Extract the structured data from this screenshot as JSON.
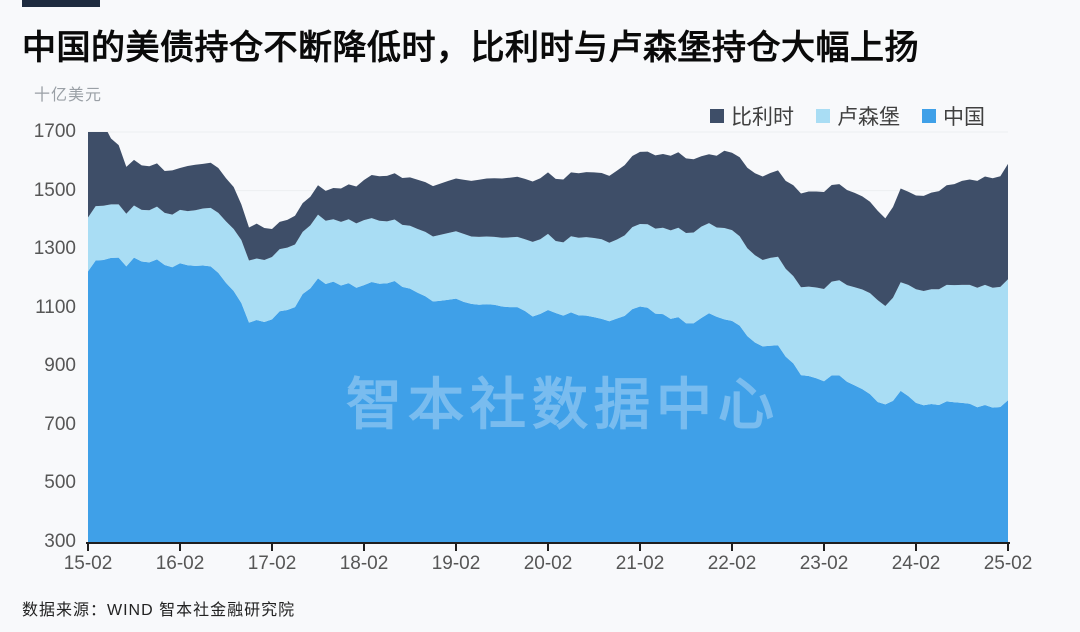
{
  "page": {
    "title": "中国的美债持仓不断降低时，比利时与卢森堡持仓大幅上扬",
    "unit_label": "十亿美元",
    "watermark": "智本社数据中心",
    "source": "数据来源：WIND 智本社金融研究院"
  },
  "colors": {
    "belgium": "#3E4E68",
    "luxembourg": "#A9DDF4",
    "china": "#3FA0E8",
    "background": "#F8F9FB",
    "grid": "#ECEEF1",
    "axis": "#1F1F1F",
    "accent_bar": "#1E2B3F"
  },
  "chart_data": {
    "type": "area",
    "stacked": true,
    "title": "中国的美债持仓不断降低时，比利时与卢森堡持仓大幅上扬",
    "ylabel": "十亿美元",
    "ylim": [
      300,
      1700
    ],
    "y_ticks": [
      1700,
      1500,
      1300,
      1100,
      900,
      700,
      500,
      300
    ],
    "x_tick_labels": [
      "15-02",
      "16-02",
      "17-02",
      "18-02",
      "19-02",
      "20-02",
      "21-02",
      "22-02",
      "23-02",
      "24-02",
      "25-02"
    ],
    "x_start": "2015-02",
    "x_end": "2025-02",
    "x_interval": "monthly",
    "grid": true,
    "legend_position": "top-right",
    "stack_order_bottom_to_top": [
      "中国",
      "卢森堡",
      "比利时"
    ],
    "series": [
      {
        "name": "比利时",
        "key": "belgium",
        "color": "#3E4E68",
        "values": [
          345,
          352,
          280,
          225,
          202,
          160,
          156,
          152,
          150,
          148,
          143,
          151,
          143,
          154,
          155,
          152,
          154,
          153,
          147,
          143,
          122,
          113,
          119,
          109,
          96,
          93,
          95,
          98,
          98,
          98,
          100,
          102,
          107,
          114,
          119,
          126,
          137,
          147,
          152,
          155,
          158,
          160,
          165,
          168,
          170,
          172,
          175,
          178,
          180,
          185,
          190,
          195,
          198,
          200,
          202,
          204,
          205,
          206,
          206,
          208,
          210,
          212,
          215,
          218,
          220,
          222,
          224,
          226,
          228,
          235,
          240,
          243,
          246,
          248,
          250,
          252,
          255,
          258,
          255,
          250,
          240,
          235,
          245,
          264,
          264,
          270,
          275,
          280,
          285,
          290,
          295,
          300,
          310,
          320,
          325,
          328,
          331,
          330,
          328,
          325,
          322,
          318,
          312,
          305,
          299,
          310,
          320,
          318,
          320,
          325,
          330,
          335,
          340,
          345,
          355,
          360,
          365,
          370,
          374,
          378,
          394
        ]
      },
      {
        "name": "卢森堡",
        "key": "luxembourg",
        "color": "#A9DDF4",
        "values": [
          184,
          186,
          185,
          183,
          182,
          180,
          178,
          176,
          178,
          180,
          178,
          180,
          182,
          185,
          190,
          195,
          200,
          205,
          210,
          212,
          215,
          212,
          210,
          212,
          213,
          212,
          213,
          214,
          212,
          215,
          218,
          216,
          213,
          217,
          218,
          220,
          222,
          218,
          215,
          212,
          210,
          212,
          215,
          218,
          220,
          222,
          225,
          228,
          230,
          232,
          230,
          232,
          231,
          232,
          235,
          238,
          240,
          245,
          255,
          255,
          260,
          246,
          250,
          260,
          265,
          268,
          270,
          272,
          268,
          270,
          275,
          280,
          282,
          285,
          290,
          295,
          302,
          305,
          308,
          310,
          312,
          308,
          305,
          312,
          310,
          305,
          300,
          298,
          295,
          300,
          302,
          300,
          298,
          300,
          305,
          310,
          315,
          320,
          325,
          330,
          335,
          340,
          345,
          348,
          336,
          352,
          371,
          380,
          388,
          390,
          392,
          395,
          398,
          400,
          403,
          406,
          408,
          410,
          409,
          410,
          413
        ]
      },
      {
        "name": "中国",
        "key": "china",
        "color": "#3FA0E8",
        "values": [
          1224,
          1261,
          1263,
          1270,
          1271,
          1241,
          1271,
          1258,
          1255,
          1265,
          1246,
          1238,
          1252,
          1245,
          1243,
          1244,
          1241,
          1219,
          1185,
          1157,
          1116,
          1049,
          1058,
          1051,
          1060,
          1088,
          1092,
          1102,
          1147,
          1166,
          1200,
          1181,
          1189,
          1176,
          1184,
          1168,
          1177,
          1188,
          1182,
          1183,
          1191,
          1171,
          1165,
          1151,
          1139,
          1121,
          1124,
          1127,
          1131,
          1120,
          1113,
          1110,
          1112,
          1110,
          1104,
          1102,
          1102,
          1089,
          1070,
          1079,
          1092,
          1082,
          1073,
          1084,
          1074,
          1073,
          1068,
          1062,
          1054,
          1063,
          1072,
          1095,
          1104,
          1100,
          1080,
          1078,
          1062,
          1068,
          1047,
          1047,
          1065,
          1081,
          1069,
          1060,
          1055,
          1039,
          1003,
          981,
          968,
          970,
          972,
          933,
          910,
          870,
          867,
          859,
          849,
          869,
          869,
          847,
          835,
          822,
          805,
          778,
          770,
          782,
          816,
          798,
          775,
          767,
          771,
          768,
          780,
          777,
          775,
          772,
          760,
          768,
          759,
          761,
          784
        ]
      }
    ]
  }
}
